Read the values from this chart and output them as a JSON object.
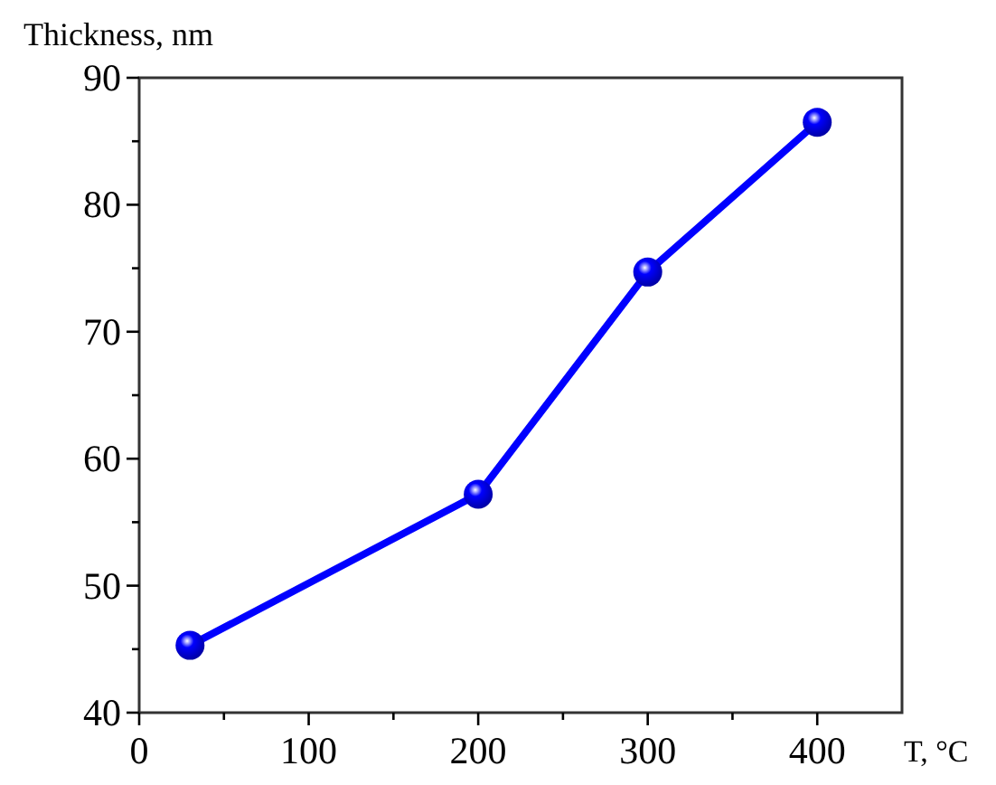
{
  "chart_data": {
    "type": "line",
    "ylabel": "Thickness, nm",
    "xlabel": "T, °C",
    "x": [
      30,
      200,
      300,
      400
    ],
    "series": [
      {
        "color": "#0000ff",
        "values": [
          45.3,
          57.2,
          74.7,
          86.5
        ]
      }
    ],
    "xlim": [
      0,
      450
    ],
    "xticks": [
      0,
      {
        "value": 50,
        "label": null
      },
      100,
      {
        "value": 150,
        "label": null
      },
      200,
      {
        "value": 250,
        "label": null
      },
      300,
      {
        "value": 350,
        "label": null
      },
      400
    ],
    "ylim": [
      40,
      90
    ],
    "yticks": [
      40,
      {
        "value": 45,
        "label": null
      },
      50,
      {
        "value": 55,
        "label": null
      },
      60,
      {
        "value": 65,
        "label": null
      },
      70,
      {
        "value": 75,
        "label": null
      },
      80,
      {
        "value": 85,
        "label": null
      },
      90
    ],
    "marker": "circle",
    "line_style": "solid",
    "grid": false
  }
}
